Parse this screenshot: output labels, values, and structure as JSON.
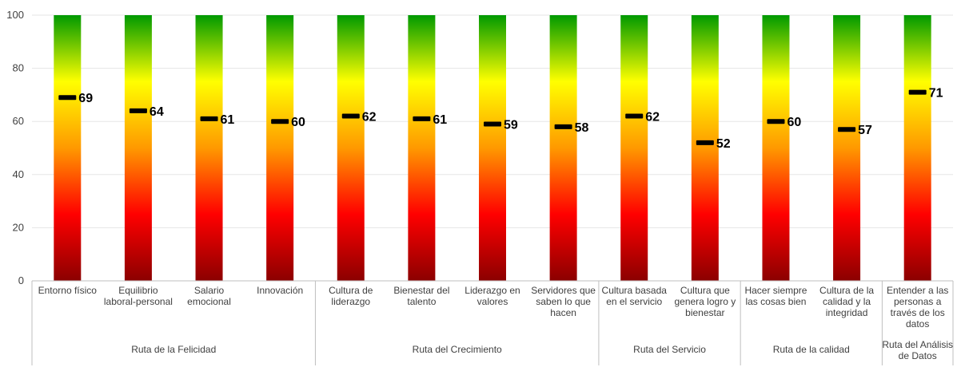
{
  "chart_data": {
    "type": "bar",
    "ylim": [
      0,
      100
    ],
    "yticks": [
      0,
      20,
      40,
      60,
      80,
      100
    ],
    "grid": true,
    "bar_gradient": [
      "#8b0000",
      "#ff0000",
      "#ff9900",
      "#ffff00",
      "#009900"
    ],
    "marker_color": "#000000",
    "categories": [
      "Entorno físico",
      "Equilibrio laboral-personal",
      "Salario emocional",
      "Innovación",
      "Cultura de liderazgo",
      "Bienestar del talento",
      "Liderazgo en valores",
      "Servidores que saben lo que hacen",
      "Cultura basada en el servicio",
      "Cultura que genera logro y bienestar",
      "Hacer siempre las cosas bien",
      "Cultura de la calidad y la integridad",
      "Entender a las personas a través de los datos"
    ],
    "category_lines": [
      [
        "Entorno físico"
      ],
      [
        "Equilibrio",
        "laboral-personal"
      ],
      [
        "Salario",
        "emocional"
      ],
      [
        "Innovación"
      ],
      [
        "Cultura de",
        "liderazgo"
      ],
      [
        "Bienestar del",
        "talento"
      ],
      [
        "Liderazgo en",
        "valores"
      ],
      [
        "Servidores que",
        "saben lo que",
        "hacen"
      ],
      [
        "Cultura basada",
        "en el servicio"
      ],
      [
        "Cultura que",
        "genera logro y",
        "bienestar"
      ],
      [
        "Hacer siempre",
        "las cosas bien"
      ],
      [
        "Cultura de la",
        "calidad y la",
        "integridad"
      ],
      [
        "Entender a las",
        "personas a",
        "través de los",
        "datos"
      ]
    ],
    "values": [
      69,
      64,
      61,
      60,
      62,
      61,
      59,
      58,
      62,
      52,
      60,
      57,
      71
    ],
    "groups": [
      {
        "lines": [
          "Ruta de la Felicidad"
        ],
        "start": 0,
        "count": 4
      },
      {
        "lines": [
          "Ruta del Crecimiento"
        ],
        "start": 4,
        "count": 4
      },
      {
        "lines": [
          "Ruta del Servicio"
        ],
        "start": 8,
        "count": 2
      },
      {
        "lines": [
          "Ruta de la calidad"
        ],
        "start": 10,
        "count": 2
      },
      {
        "lines": [
          "Ruta del Análisis",
          "de Datos"
        ],
        "start": 12,
        "count": 1
      }
    ]
  }
}
